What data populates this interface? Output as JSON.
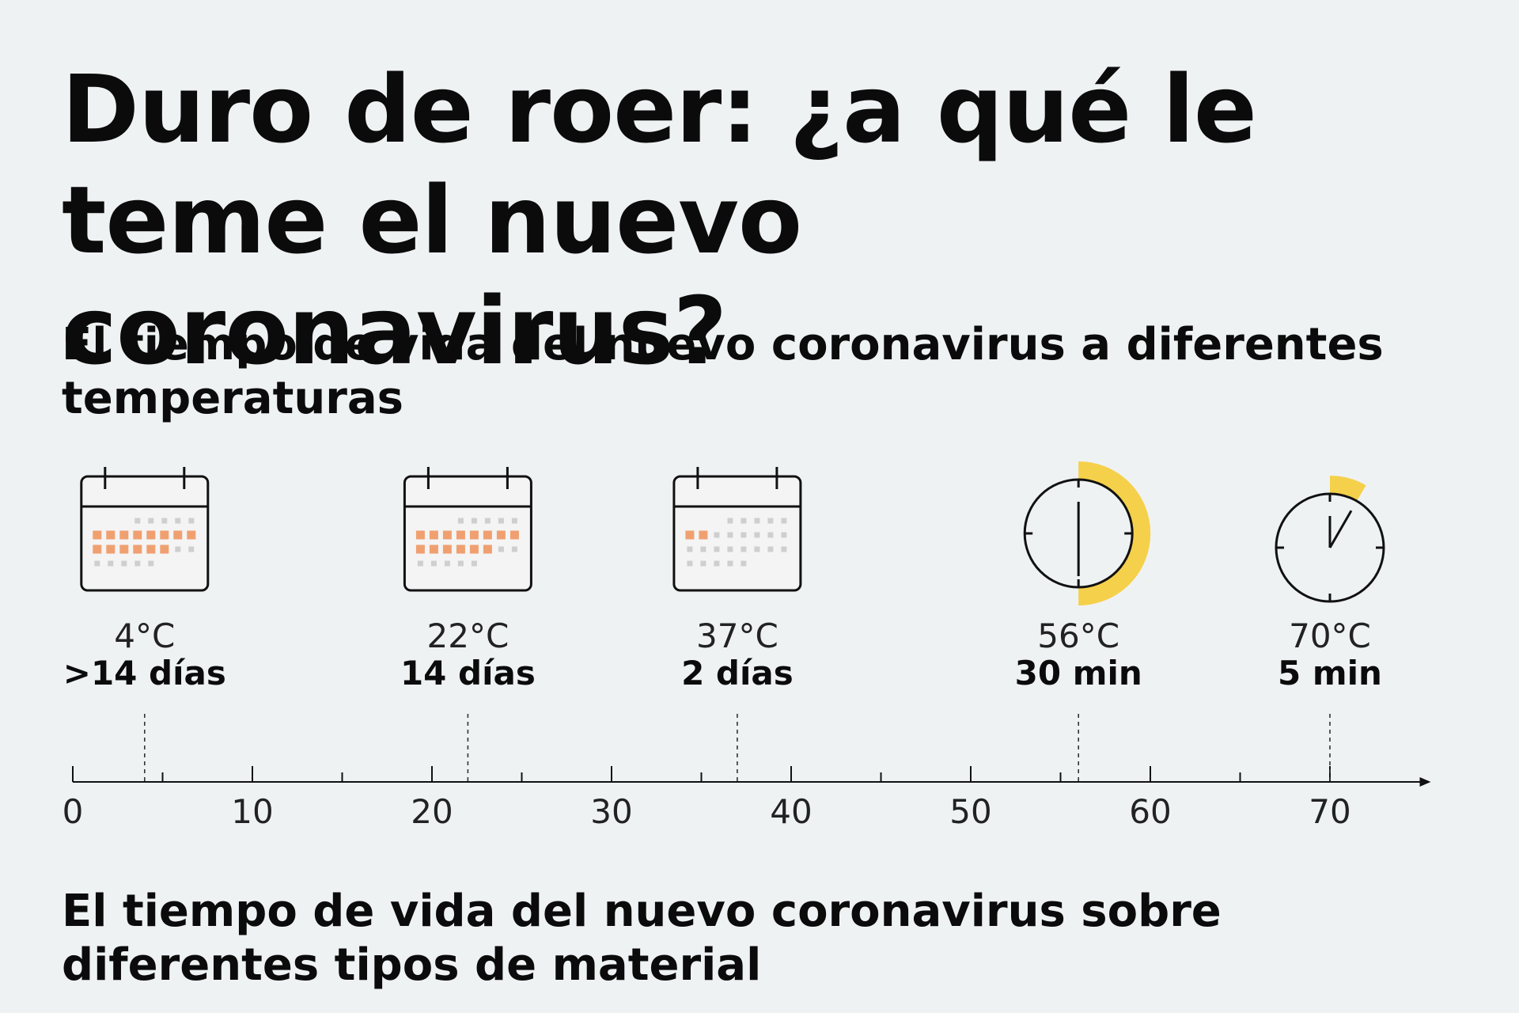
{
  "title": "Duro de roer: ¿a qué le teme el nuevo coronavirus?",
  "subtitle_temperature": "El tiempo de vida del nuevo coronavirus a diferentes temperaturas",
  "subtitle_material": "El tiempo de vida del nuevo coronavirus sobre diferentes tipos de material",
  "colors": {
    "background": "#eff2f3",
    "calendar_highlight": "#f0a070",
    "calendar_muted": "#cfcfcf",
    "clock_arc": "#f5d04a",
    "ink": "#111111"
  },
  "chart_data": {
    "type": "scatter",
    "x_axis": {
      "min": 0,
      "max": 75,
      "major_ticks": [
        0,
        10,
        20,
        30,
        40,
        50,
        60,
        70
      ],
      "minor_step": 5,
      "arrow": true,
      "unit": "°C"
    },
    "points": [
      {
        "x": 4,
        "temp_label": "4°C",
        "duration_label": ">14 días",
        "icon": "calendar-icon",
        "highlighted_days": 14
      },
      {
        "x": 22,
        "temp_label": "22°C",
        "duration_label": "14 días",
        "icon": "calendar-icon",
        "highlighted_days": 14
      },
      {
        "x": 37,
        "temp_label": "37°C",
        "duration_label": "2 días",
        "icon": "calendar-icon",
        "highlighted_days": 2
      },
      {
        "x": 56,
        "temp_label": "56°C",
        "duration_label": "30 min",
        "icon": "clock-icon",
        "minutes": 30
      },
      {
        "x": 70,
        "temp_label": "70°C",
        "duration_label": "5 min",
        "icon": "clock-icon",
        "minutes": 5
      }
    ]
  }
}
